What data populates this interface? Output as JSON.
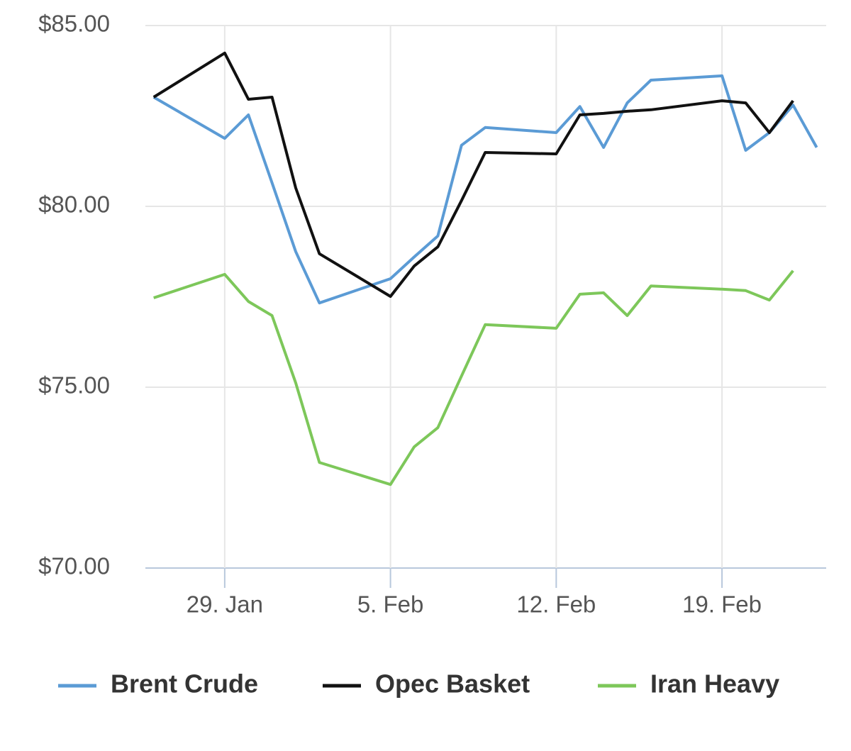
{
  "chart_data": {
    "type": "line",
    "x": [
      26,
      29,
      30,
      31,
      32,
      33,
      36,
      37,
      38,
      39,
      40,
      43,
      44,
      45,
      46,
      47,
      50,
      51,
      52,
      53,
      54
    ],
    "xlim": [
      25.65,
      54.4
    ],
    "xticks": [
      {
        "value": 29,
        "label": "29. Jan"
      },
      {
        "value": 36,
        "label": "5. Feb"
      },
      {
        "value": 43,
        "label": "12. Feb"
      },
      {
        "value": 50,
        "label": "19. Feb"
      }
    ],
    "ylim": [
      70,
      85
    ],
    "yticks": [
      {
        "value": 70,
        "label": "$70.00"
      },
      {
        "value": 75,
        "label": "$75.00"
      },
      {
        "value": 80,
        "label": "$80.00"
      },
      {
        "value": 85,
        "label": "$85.00"
      }
    ],
    "grid": true,
    "legend": "bottom",
    "series": [
      {
        "name": "Brent Crude",
        "color": "#5b9bd5",
        "values": [
          83.02,
          81.88,
          82.53,
          80.65,
          78.75,
          77.33,
          78.0,
          78.6,
          79.18,
          81.69,
          82.18,
          82.04,
          82.76,
          81.63,
          82.86,
          83.49,
          83.61,
          81.55,
          82.04,
          82.8,
          81.63
        ]
      },
      {
        "name": "Opec Basket",
        "color": "#111111",
        "values": [
          83.02,
          84.24,
          82.96,
          83.02,
          80.51,
          78.69,
          77.51,
          78.35,
          78.88,
          80.16,
          81.49,
          81.45,
          82.53,
          82.57,
          82.63,
          82.67,
          82.92,
          82.86,
          82.04,
          82.92,
          null
        ]
      },
      {
        "name": "Iran Heavy",
        "color": "#7dc75a",
        "values": [
          77.47,
          78.12,
          77.37,
          76.98,
          75.12,
          72.92,
          72.31,
          73.35,
          73.88,
          75.31,
          76.73,
          76.63,
          77.57,
          77.61,
          76.98,
          77.8,
          77.71,
          77.67,
          77.41,
          78.22,
          null
        ]
      }
    ]
  }
}
